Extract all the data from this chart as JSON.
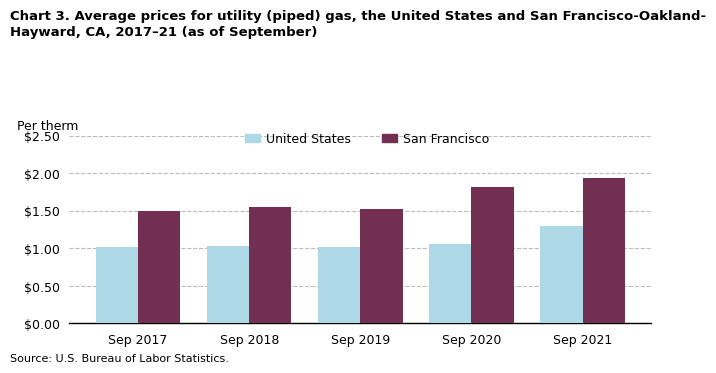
{
  "title_line1": "Chart 3. Average prices for utility (piped) gas, the United States and San Francisco-Oakland-",
  "title_line2": "Hayward, CA, 2017–21 (as of September)",
  "ylabel": "Per therm",
  "source": "Source: U.S. Bureau of Labor Statistics.",
  "categories": [
    "Sep 2017",
    "Sep 2018",
    "Sep 2019",
    "Sep 2020",
    "Sep 2021"
  ],
  "us_values": [
    1.01,
    1.03,
    1.01,
    1.06,
    1.3
  ],
  "sf_values": [
    1.49,
    1.55,
    1.52,
    1.81,
    1.93
  ],
  "us_color": "#add8e6",
  "sf_color": "#722f52",
  "us_label": "United States",
  "sf_label": "San Francisco",
  "ylim": [
    0,
    2.5
  ],
  "yticks": [
    0.0,
    0.5,
    1.0,
    1.5,
    2.0,
    2.5
  ],
  "background_color": "#ffffff",
  "grid_color": "#bbbbbb",
  "bar_width": 0.38
}
